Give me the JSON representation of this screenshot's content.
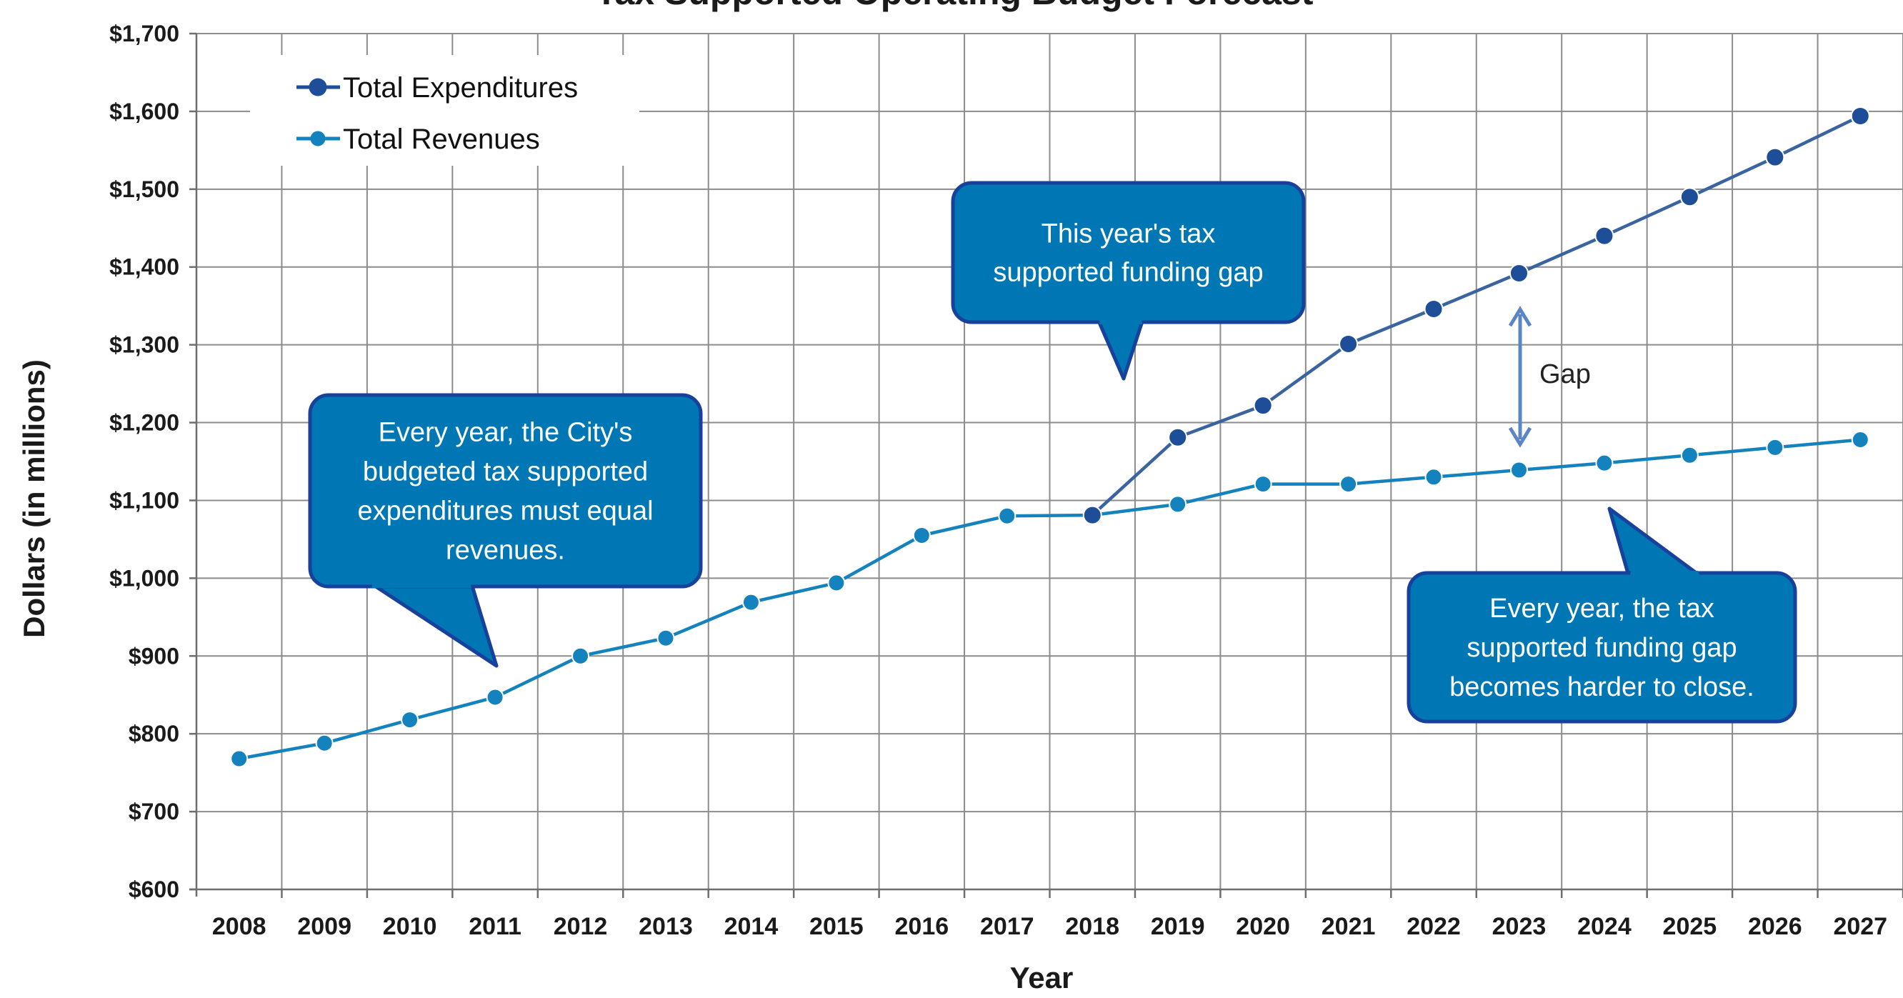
{
  "chart_data": {
    "type": "line",
    "title": "Tax Supported Operating Budget Forecast",
    "xlabel": "Year",
    "ylabel": "Dollars (in millions)",
    "ylim": [
      600,
      1700
    ],
    "yticks": [
      600,
      700,
      800,
      900,
      1000,
      1100,
      1200,
      1300,
      1400,
      1500,
      1600,
      1700
    ],
    "ytick_labels": [
      "$600",
      "$700",
      "$800",
      "$900",
      "$1,000",
      "$1,100",
      "$1,200",
      "$1,300",
      "$1,400",
      "$1,500",
      "$1,600",
      "$1,700"
    ],
    "categories": [
      "2008",
      "2009",
      "2010",
      "2011",
      "2012",
      "2013",
      "2014",
      "2015",
      "2016",
      "2017",
      "2018",
      "2019",
      "2020",
      "2021",
      "2022",
      "2023",
      "2024",
      "2025",
      "2026",
      "2027"
    ],
    "grid": true,
    "legend_position": "top-left",
    "series": [
      {
        "name": "Total Expenditures",
        "color": "#1f4e99",
        "line_color": "#3a64a0",
        "values": [
          null,
          null,
          null,
          null,
          null,
          null,
          null,
          null,
          null,
          null,
          1081,
          1181,
          1222,
          1301,
          1346,
          1392,
          1440,
          1490,
          1541,
          1594
        ]
      },
      {
        "name": "Total Revenues",
        "color": "#1482bd",
        "line_color": "#1482bd",
        "values": [
          768,
          788,
          818,
          847,
          900,
          923,
          969,
          994,
          1055,
          1080,
          1081,
          1095,
          1121,
          1121,
          1130,
          1139,
          1148,
          1158,
          1168,
          1178
        ]
      }
    ],
    "annotations": [
      {
        "name": "callout-equal",
        "lines": [
          "Every year, the City's",
          "budgeted tax supported",
          "expenditures must equal",
          "revenues."
        ]
      },
      {
        "name": "callout-this-year",
        "lines": [
          "This year's tax",
          "supported funding gap"
        ]
      },
      {
        "name": "callout-harder",
        "lines": [
          "Every year, the tax",
          "supported funding gap",
          "becomes harder to close."
        ]
      },
      {
        "name": "gap-label",
        "text": "Gap"
      }
    ],
    "callout_color": "#0077b5",
    "callout_border": "#17419a"
  }
}
